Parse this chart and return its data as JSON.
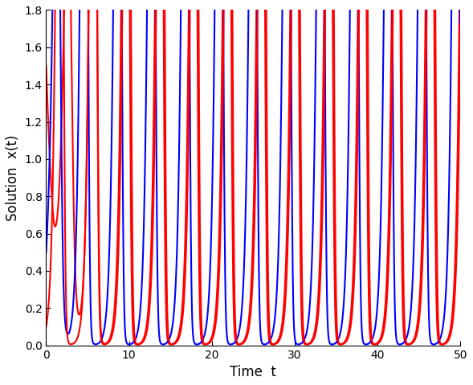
{
  "title": "",
  "xlabel": "Time  t",
  "ylabel": "Solution  x(t)",
  "xlim": [
    0,
    50
  ],
  "ylim": [
    0,
    1.8
  ],
  "xticks": [
    0,
    10,
    20,
    30,
    40,
    50
  ],
  "yticks": [
    0,
    0.2,
    0.4,
    0.6,
    0.8,
    1.0,
    1.2,
    1.4,
    1.6,
    1.8
  ],
  "line_colors": [
    "#FF0000",
    "#0000FF",
    "#FF0000"
  ],
  "phi_values": [
    1.5,
    0.5,
    0.1
  ],
  "delta": 0.8,
  "background_color": "#ffffff",
  "line_width": 1.5,
  "figsize": [
    5.89,
    4.79
  ],
  "dpi": 100
}
